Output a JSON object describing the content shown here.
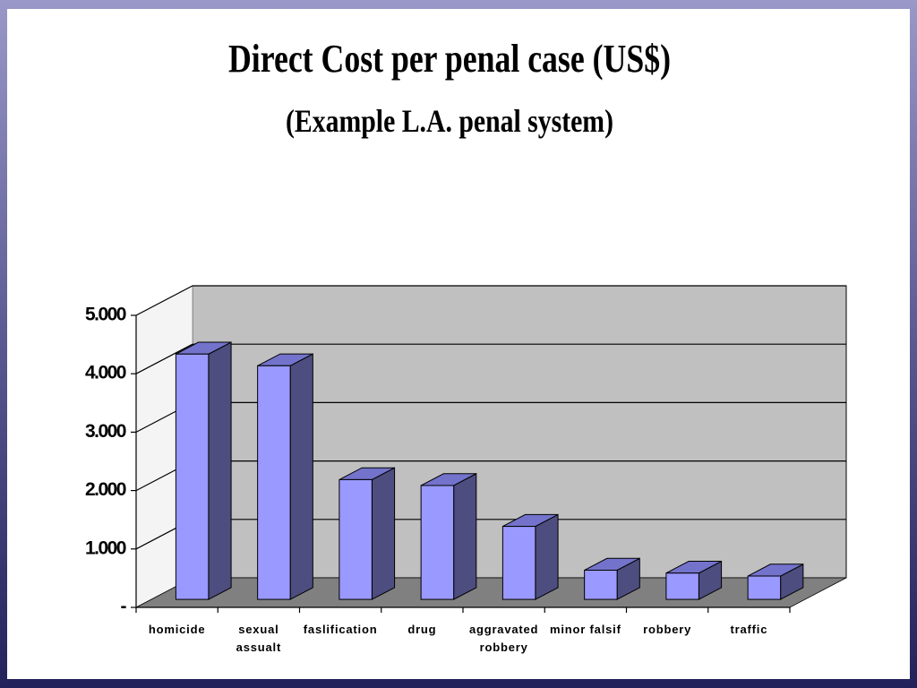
{
  "chart_data": {
    "type": "bar3d",
    "title": "Direct Cost per penal case (US$)",
    "subtitle": "(Example L.A. penal system)",
    "categories": [
      "homicide",
      "sexual\nassualt",
      "faslification",
      "drug",
      "aggravated\nrobbery",
      "minor falsif",
      "robbery",
      "traffic"
    ],
    "values": [
      4200,
      4000,
      2050,
      1950,
      1250,
      500,
      450,
      400
    ],
    "color": "#9999ff",
    "ylim": [
      0,
      5000
    ],
    "yticks": [
      {
        "value": 0,
        "label": "-"
      },
      {
        "value": 1000,
        "label": "1.000"
      },
      {
        "value": 2000,
        "label": "2.000"
      },
      {
        "value": 3000,
        "label": "3.000"
      },
      {
        "value": 4000,
        "label": "4.000"
      },
      {
        "value": 5000,
        "label": "5.000"
      }
    ],
    "grid": true
  }
}
